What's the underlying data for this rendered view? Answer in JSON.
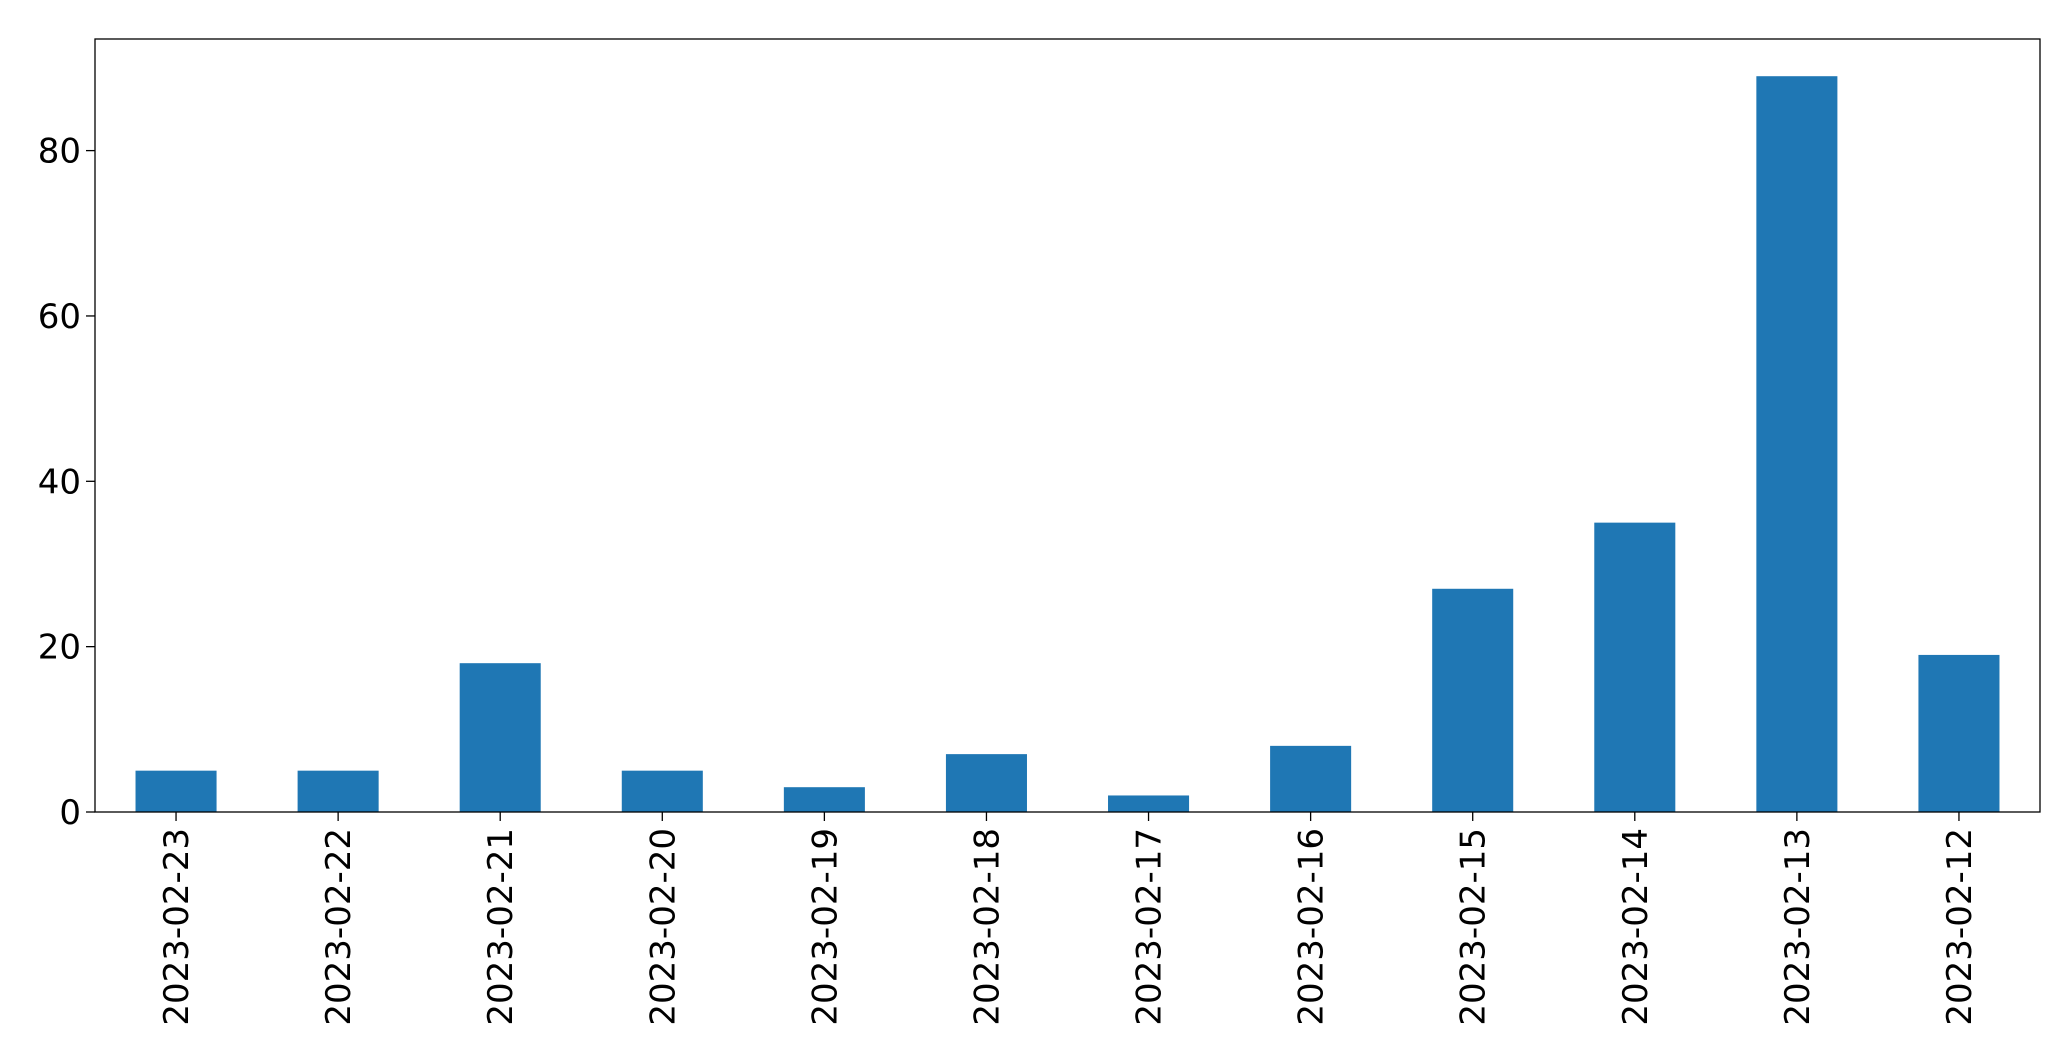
{
  "chart_data": {
    "type": "bar",
    "title": "",
    "xlabel": "",
    "ylabel": "",
    "categories": [
      "2023-02-23",
      "2023-02-22",
      "2023-02-21",
      "2023-02-20",
      "2023-02-19",
      "2023-02-18",
      "2023-02-17",
      "2023-02-16",
      "2023-02-15",
      "2023-02-14",
      "2023-02-13",
      "2023-02-12"
    ],
    "values": [
      5,
      5,
      18,
      5,
      3,
      7,
      2,
      8,
      27,
      35,
      89,
      19
    ],
    "ylim": [
      0,
      93.5
    ],
    "yticks": [
      0,
      20,
      40,
      60,
      80
    ],
    "ytick_labels": [
      "0",
      "20",
      "40",
      "60",
      "80"
    ],
    "bar_color": "#1f77b4",
    "grid": false,
    "legend": "none"
  }
}
